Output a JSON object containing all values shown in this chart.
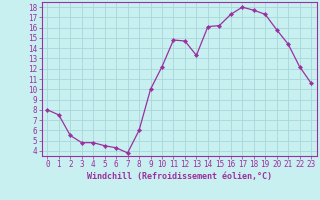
{
  "x": [
    0,
    1,
    2,
    3,
    4,
    5,
    6,
    7,
    8,
    9,
    10,
    11,
    12,
    13,
    14,
    15,
    16,
    17,
    18,
    19,
    20,
    21,
    22,
    23
  ],
  "y": [
    8.0,
    7.5,
    5.5,
    4.8,
    4.8,
    4.5,
    4.3,
    3.8,
    6.0,
    10.0,
    12.2,
    14.8,
    14.7,
    13.3,
    16.1,
    16.2,
    17.3,
    18.0,
    17.7,
    17.3,
    15.8,
    14.4,
    12.2,
    10.6
  ],
  "line_color": "#9b30a0",
  "marker": "D",
  "marker_size": 2.2,
  "bg_color": "#c8f0f0",
  "grid_color": "#a8d8d8",
  "axis_color": "#9b30a0",
  "xlabel": "Windchill (Refroidissement éolien,°C)",
  "ylim": [
    3.5,
    18.5
  ],
  "xlim": [
    -0.5,
    23.5
  ],
  "yticks": [
    4,
    5,
    6,
    7,
    8,
    9,
    10,
    11,
    12,
    13,
    14,
    15,
    16,
    17,
    18
  ],
  "xticks": [
    0,
    1,
    2,
    3,
    4,
    5,
    6,
    7,
    8,
    9,
    10,
    11,
    12,
    13,
    14,
    15,
    16,
    17,
    18,
    19,
    20,
    21,
    22,
    23
  ],
  "tick_fontsize": 5.5,
  "label_fontsize": 6.0,
  "linewidth": 0.9
}
